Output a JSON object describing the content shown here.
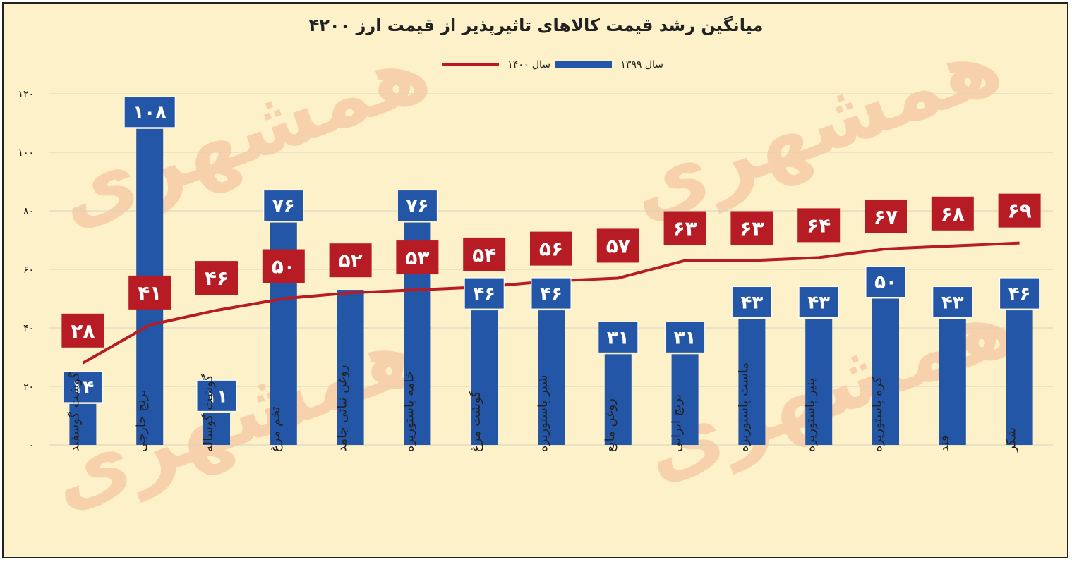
{
  "colors": {
    "background": "#fdf1c9",
    "bar_1399": "#2456a8",
    "line_1400": "#b71c24",
    "grid": "#d9d2bd",
    "label_text": "#ffffff"
  },
  "watermark_text": "همشهری",
  "chart_data": {
    "type": "bar",
    "title": "میانگین رشد قیمت کالاهای تاثیرپذیر از قیمت ارز ۴۲۰۰",
    "xlabel": "",
    "ylabel": "",
    "ylim": [
      0,
      120
    ],
    "yticks": [
      "۰",
      "۲۰",
      "۴۰",
      "۶۰",
      "۸۰",
      "۱۰۰",
      "۱۲۰"
    ],
    "ytick_values": [
      0,
      20,
      40,
      60,
      80,
      100,
      120
    ],
    "grid": true,
    "legend_position": "top-center",
    "categories": [
      "گوشت گوسفند",
      "برنج خارجی",
      "گوشت گوساله",
      "تخم مرغ",
      "روغن نباتی جامد",
      "خامه پاستوریزه",
      "گوشت مرغ",
      "شیر پاستوریزه",
      "روغن مایع",
      "برنج ایرانی",
      "ماست پاستوریزه",
      "پنیر پاستوریزه",
      "کره پاستوریزه",
      "قند",
      "شکر"
    ],
    "series": [
      {
        "name": "سال ۱۳۹۹",
        "type": "bar",
        "values": [
          14,
          108,
          11,
          76,
          53,
          76,
          46,
          46,
          31,
          31,
          43,
          43,
          50,
          43,
          46
        ],
        "labels": [
          "۱۴",
          "۱۰۸",
          "۱۱",
          "۷۶",
          "",
          "۷۶",
          "۴۶",
          "۴۶",
          "۳۱",
          "۳۱",
          "۴۳",
          "۴۳",
          "۵۰",
          "۴۳",
          "۴۶"
        ]
      },
      {
        "name": "سال ۱۴۰۰",
        "type": "line",
        "values": [
          28,
          41,
          46,
          50,
          52,
          53,
          54,
          56,
          57,
          63,
          63,
          64,
          67,
          68,
          69
        ],
        "labels": [
          "۲۸",
          "۴۱",
          "۴۶",
          "۵۰",
          "۵۲",
          "۵۳",
          "۵۴",
          "۵۶",
          "۵۷",
          "۶۳",
          "۶۳",
          "۶۴",
          "۶۷",
          "۶۸",
          "۶۹"
        ]
      }
    ]
  }
}
